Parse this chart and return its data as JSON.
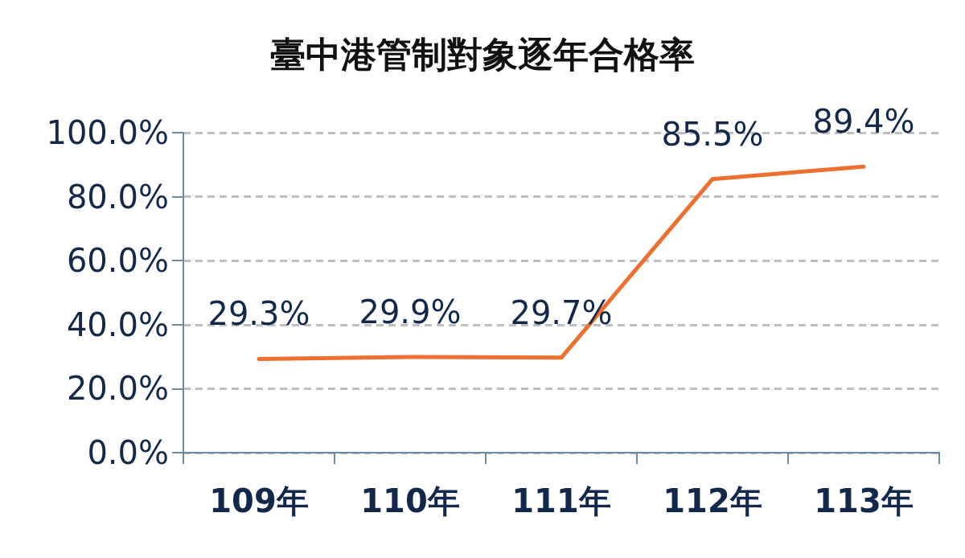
{
  "chart_data": {
    "type": "line",
    "title": "臺中港管制對象逐年合格率",
    "categories": [
      "109年",
      "110年",
      "111年",
      "112年",
      "113年"
    ],
    "series": [
      {
        "color": "#ed7031",
        "values": [
          29.3,
          29.9,
          29.7,
          85.5,
          89.4
        ],
        "value_labels": [
          "29.3%",
          "29.9%",
          "29.7%",
          "85.5%",
          "89.4%"
        ]
      }
    ],
    "ylim": [
      0,
      100
    ],
    "yticks": [
      {
        "value": 0,
        "label": "0.0%"
      },
      {
        "value": 20,
        "label": "20.0%"
      },
      {
        "value": 40,
        "label": "40.0%"
      },
      {
        "value": 60,
        "label": "60.0%"
      },
      {
        "value": 80,
        "label": "80.0%"
      },
      {
        "value": 100,
        "label": "100.0%"
      }
    ],
    "grid": "y",
    "marker": "none",
    "line_style": "solid"
  }
}
